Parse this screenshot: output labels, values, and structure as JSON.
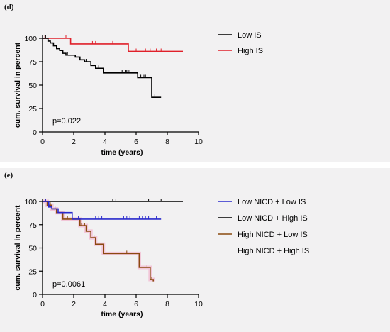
{
  "panels": [
    {
      "id": "d",
      "letter": "(d)",
      "pvalue": "p=0.022",
      "chart_data": {
        "type": "line",
        "subtype": "kaplan-meier",
        "xlabel": "time (years)",
        "ylabel": "cum. survival in percent",
        "xlim": [
          0,
          10
        ],
        "ylim": [
          0,
          100
        ],
        "xticks": [
          0,
          2,
          4,
          6,
          8,
          10
        ],
        "yticks": [
          0,
          25,
          50,
          75,
          100
        ],
        "legend_position": "right",
        "series": [
          {
            "name": "Low IS",
            "color": "#000000",
            "steps": [
              [
                0,
                100
              ],
              [
                0.35,
                97
              ],
              [
                0.5,
                95
              ],
              [
                0.7,
                92
              ],
              [
                0.9,
                89
              ],
              [
                1.1,
                87
              ],
              [
                1.3,
                84
              ],
              [
                1.5,
                82
              ],
              [
                2.1,
                80
              ],
              [
                2.4,
                77
              ],
              [
                2.7,
                75
              ],
              [
                3.1,
                71
              ],
              [
                3.4,
                68
              ],
              [
                3.9,
                63
              ],
              [
                6.1,
                58
              ],
              [
                7.0,
                37
              ],
              [
                7.6,
                37
              ]
            ],
            "censor": [
              0.2,
              1.6,
              2.8,
              3.6,
              5.1,
              5.3,
              5.4,
              5.5,
              5.6,
              6.3,
              6.5,
              6.6,
              7.2
            ]
          },
          {
            "name": "High IS",
            "color": "#e0202a",
            "steps": [
              [
                0,
                100
              ],
              [
                1.8,
                94
              ],
              [
                5.5,
                86
              ],
              [
                9.0,
                86
              ]
            ],
            "censor": [
              0.15,
              1.5,
              3.2,
              3.4,
              4.5,
              6.0,
              6.6,
              6.9,
              7.3,
              7.6
            ]
          }
        ]
      }
    },
    {
      "id": "e",
      "letter": "(e)",
      "pvalue": "p=0.0061",
      "chart_data": {
        "type": "line",
        "subtype": "kaplan-meier",
        "xlabel": "time (years)",
        "ylabel": "cum. survival in percent",
        "xlim": [
          0,
          10
        ],
        "ylim": [
          0,
          100
        ],
        "xticks": [
          0,
          2,
          4,
          6,
          8,
          10
        ],
        "yticks": [
          0,
          25,
          50,
          75,
          100
        ],
        "legend_position": "right",
        "series": [
          {
            "name": "Low NICD + Low IS",
            "color": "#2a2acc",
            "steps": [
              [
                0,
                100
              ],
              [
                0.4,
                94
              ],
              [
                0.6,
                92
              ],
              [
                1.0,
                88
              ],
              [
                1.9,
                81
              ],
              [
                7.6,
                81
              ]
            ],
            "censor": [
              0.2,
              0.8,
              2.3,
              3.4,
              3.6,
              3.8,
              5.2,
              5.4,
              5.6,
              6.2,
              6.4,
              6.6,
              6.8,
              7.3
            ]
          },
          {
            "name": "Low NICD + High IS",
            "color": "#000000",
            "steps": [
              [
                0,
                100
              ],
              [
                9.0,
                100
              ]
            ],
            "censor": [
              4.5,
              4.7,
              6.8,
              7.6
            ]
          },
          {
            "name": "High NICD + Low IS",
            "color": "#8a4a10",
            "steps": [
              [
                0,
                100
              ],
              [
                0.3,
                96
              ],
              [
                0.6,
                92
              ],
              [
                0.9,
                88
              ],
              [
                1.3,
                81
              ],
              [
                2.0,
                81
              ],
              [
                2.4,
                74
              ],
              [
                2.8,
                68
              ],
              [
                3.1,
                61
              ],
              [
                3.4,
                54
              ],
              [
                3.9,
                44
              ],
              [
                6.2,
                29
              ],
              [
                6.9,
                16
              ],
              [
                7.1,
                14
              ]
            ],
            "censor": [
              0.2,
              0.5,
              1.6,
              2.5,
              2.7,
              3.3,
              5.4,
              6.7,
              7.0
            ]
          },
          {
            "name": "High NICD + High IS",
            "color": "#f2c6d8",
            "steps": [
              [
                0,
                100
              ],
              [
                0.3,
                96
              ],
              [
                0.6,
                92
              ],
              [
                0.9,
                88
              ],
              [
                1.3,
                81
              ],
              [
                2.0,
                81
              ],
              [
                2.4,
                74
              ],
              [
                2.8,
                68
              ],
              [
                3.1,
                61
              ],
              [
                3.4,
                54
              ],
              [
                3.9,
                44
              ],
              [
                6.2,
                29
              ],
              [
                6.9,
                16
              ],
              [
                7.1,
                14
              ]
            ],
            "censor": []
          }
        ]
      }
    }
  ]
}
